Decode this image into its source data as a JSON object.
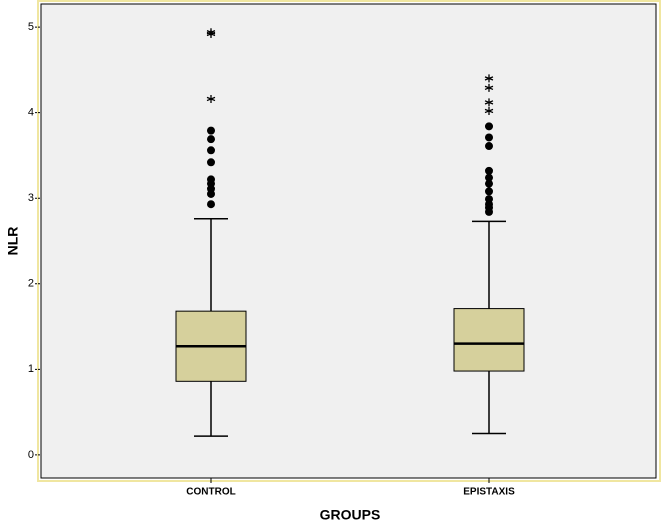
{
  "chart_data": {
    "type": "boxplot",
    "xlabel": "GROUPS",
    "ylabel": "NLR",
    "categories": [
      "CONTROL",
      "EPISTAXIS"
    ],
    "boxes": [
      {
        "whisker_low": 0.22,
        "q1": 0.86,
        "median": 1.27,
        "q3": 1.68,
        "whisker_high": 2.76,
        "outliers": [
          2.93,
          3.05,
          3.11,
          3.17,
          3.22,
          3.42,
          3.56,
          3.69,
          3.79
        ],
        "extremes": [
          4.16,
          4.92,
          4.94
        ]
      },
      {
        "whisker_low": 0.25,
        "q1": 0.98,
        "median": 1.3,
        "q3": 1.71,
        "whisker_high": 2.73,
        "outliers": [
          2.84,
          2.89,
          2.93,
          2.99,
          3.08,
          3.17,
          3.24,
          3.32,
          3.61,
          3.71,
          3.84
        ],
        "extremes": [
          4.02,
          4.12,
          4.29,
          4.4
        ]
      }
    ],
    "color": "#d6d09c",
    "ylim": [
      -0.27,
      5.27
    ],
    "yticks": [
      0,
      1,
      2,
      3,
      4,
      5
    ]
  }
}
